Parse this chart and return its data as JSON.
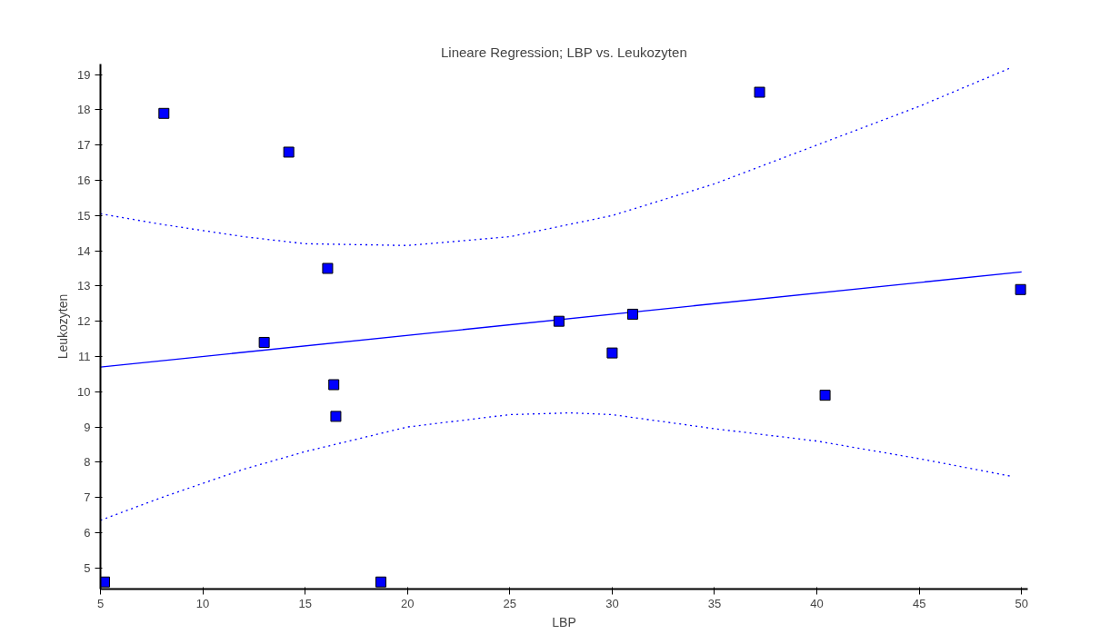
{
  "chart_data": {
    "type": "scatter",
    "title": "Lineare Regression; LBP vs. Leukozyten",
    "xlabel": "LBP",
    "ylabel": "Leukozyten",
    "xlim": [
      5,
      50.3
    ],
    "ylim": [
      4.4,
      19.3
    ],
    "xticks": [
      5,
      10,
      15,
      20,
      25,
      30,
      35,
      40,
      45,
      50
    ],
    "yticks": [
      5,
      6,
      7,
      8,
      9,
      10,
      11,
      12,
      13,
      14,
      15,
      16,
      17,
      18,
      19
    ],
    "grid": false,
    "series": [
      {
        "marker": "square",
        "color": "#0000ff",
        "x": [
          5.2,
          8.1,
          14.2,
          13.0,
          16.1,
          16.4,
          16.5,
          18.7,
          27.4,
          30.0,
          31.0,
          37.2,
          40.4,
          49.95
        ],
        "values": [
          4.6,
          17.9,
          16.8,
          11.4,
          13.5,
          10.2,
          9.3,
          4.6,
          12.0,
          11.1,
          12.2,
          18.5,
          9.9,
          12.9
        ]
      },
      {
        "type": "line",
        "line_style": "solid",
        "color": "#0000ff",
        "x": [
          5,
          50
        ],
        "values": [
          10.7,
          13.4
        ]
      },
      {
        "type": "line",
        "line_style": "dotted",
        "color": "#0000ff",
        "x": [
          5,
          8,
          12,
          15,
          20,
          25,
          30,
          35,
          40,
          45,
          49.5
        ],
        "values": [
          15.05,
          14.75,
          14.4,
          14.2,
          14.15,
          14.4,
          15.0,
          15.9,
          17.0,
          18.1,
          19.2
        ]
      },
      {
        "type": "line",
        "line_style": "dotted",
        "color": "#0000ff",
        "x": [
          5,
          8,
          12,
          15,
          20,
          25,
          28,
          30,
          35,
          40,
          45,
          49.5
        ],
        "values": [
          6.35,
          7.0,
          7.8,
          8.3,
          9.0,
          9.35,
          9.4,
          9.35,
          8.95,
          8.6,
          8.1,
          7.6
        ]
      }
    ]
  }
}
